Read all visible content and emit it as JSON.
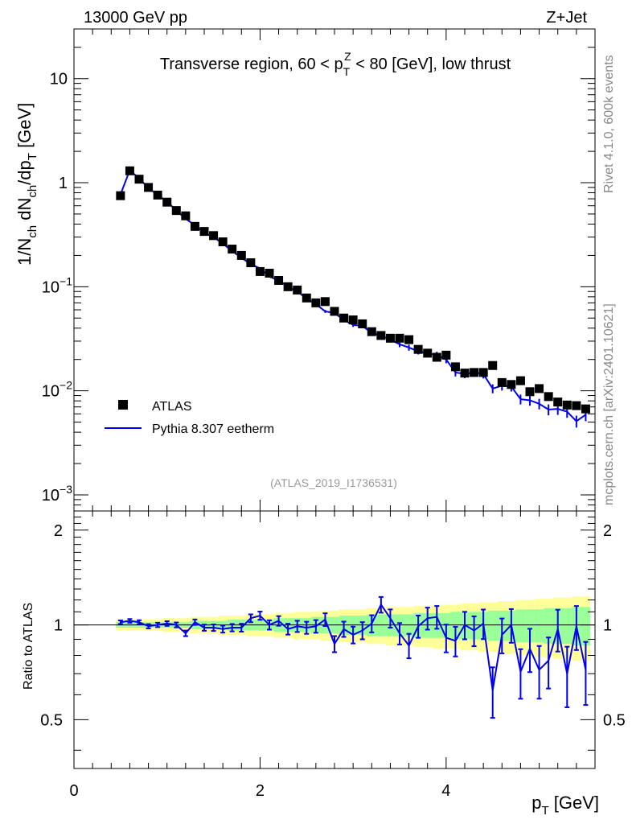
{
  "header": {
    "left": "13000 GeV pp",
    "right": "Z+Jet"
  },
  "side_labels": {
    "top": "Rivet 4.1.0,  600k events",
    "bottom": "mcplots.cern.ch [arXiv:2401.10621]"
  },
  "colors": {
    "data": "#000000",
    "mc": "#0000ee",
    "band_outer": "#ffff99",
    "band_inner": "#99ff99"
  },
  "chart_data": [
    {
      "type": "scatter",
      "title": "Transverse region, 60 < p_T^Z < 80 [GeV], low thrust",
      "ylabel": "1/N_ch dN_ch/dp_T [GeV]",
      "yscale": "log",
      "xlim": [
        0,
        5.6
      ],
      "ylim": [
        0.0007,
        30
      ],
      "yticks": [
        "10^-3",
        "10^-2",
        "10^-1",
        "1",
        "10"
      ],
      "watermark": "(ATLAS_2019_I1736531)",
      "legend": {
        "placement": "lower-left",
        "entries": [
          "ATLAS",
          "Pythia 8.307 eetherm"
        ]
      },
      "x": [
        0.5,
        0.6,
        0.7,
        0.8,
        0.9,
        1.0,
        1.1,
        1.2,
        1.3,
        1.4,
        1.5,
        1.6,
        1.7,
        1.8,
        1.9,
        2.0,
        2.1,
        2.2,
        2.3,
        2.4,
        2.5,
        2.6,
        2.7,
        2.8,
        2.9,
        3.0,
        3.1,
        3.2,
        3.3,
        3.4,
        3.5,
        3.6,
        3.7,
        3.8,
        3.9,
        4.0,
        4.1,
        4.2,
        4.3,
        4.4,
        4.5,
        4.6,
        4.7,
        4.8,
        4.9,
        5.0,
        5.1,
        5.2,
        5.3,
        5.4,
        5.5
      ],
      "series": [
        {
          "name": "ATLAS",
          "values": [
            0.75,
            1.3,
            1.08,
            0.9,
            0.76,
            0.65,
            0.54,
            0.48,
            0.38,
            0.34,
            0.31,
            0.27,
            0.23,
            0.2,
            0.17,
            0.14,
            0.135,
            0.115,
            0.1,
            0.093,
            0.078,
            0.07,
            0.072,
            0.058,
            0.05,
            0.048,
            0.044,
            0.037,
            0.034,
            0.032,
            0.032,
            0.031,
            0.025,
            0.023,
            0.021,
            0.022,
            0.017,
            0.0148,
            0.015,
            0.015,
            0.0175,
            0.012,
            0.0115,
            0.0125,
            0.0098,
            0.0105,
            0.0088,
            0.0078,
            0.0073,
            0.0072,
            0.0067
          ]
        },
        {
          "name": "Pythia 8.307 eetherm",
          "values": [
            0.77,
            1.32,
            1.1,
            0.89,
            0.76,
            0.66,
            0.54,
            0.45,
            0.39,
            0.33,
            0.3,
            0.26,
            0.22,
            0.19,
            0.165,
            0.15,
            0.125,
            0.115,
            0.1,
            0.09,
            0.077,
            0.068,
            0.058,
            0.056,
            0.048,
            0.043,
            0.042,
            0.036,
            0.034,
            0.031,
            0.028,
            0.026,
            0.024,
            0.023,
            0.022,
            0.02,
            0.015,
            0.0145,
            0.015,
            0.0145,
            0.0105,
            0.0112,
            0.011,
            0.0083,
            0.0081,
            0.0075,
            0.0066,
            0.0067,
            0.0063,
            0.0051,
            0.0059
          ]
        }
      ]
    },
    {
      "type": "line",
      "xlabel": "p_T [GeV]",
      "ylabel": "Ratio to ATLAS",
      "xlim": [
        0,
        5.6
      ],
      "ylim": [
        0.35,
        2.3
      ],
      "xticks": [
        0,
        2,
        4
      ],
      "yticks": [
        0.5,
        1,
        2
      ],
      "reference": 1,
      "x": [
        0.5,
        0.6,
        0.7,
        0.8,
        0.9,
        1.0,
        1.1,
        1.2,
        1.3,
        1.4,
        1.5,
        1.6,
        1.7,
        1.8,
        1.9,
        2.0,
        2.1,
        2.2,
        2.3,
        2.4,
        2.5,
        2.6,
        2.7,
        2.8,
        2.9,
        3.0,
        3.1,
        3.2,
        3.3,
        3.4,
        3.5,
        3.6,
        3.7,
        3.8,
        3.9,
        4.0,
        4.1,
        4.2,
        4.3,
        4.4,
        4.5,
        4.6,
        4.7,
        4.8,
        4.9,
        5.0,
        5.1,
        5.2,
        5.3,
        5.4,
        5.5
      ],
      "series": [
        {
          "name": "Pythia 8.307 eetherm / ATLAS",
          "values": [
            1.02,
            1.03,
            1.02,
            0.99,
            1.0,
            1.01,
            1.0,
            0.94,
            1.02,
            0.98,
            0.98,
            0.97,
            0.98,
            0.98,
            1.05,
            1.07,
            1.0,
            1.03,
            0.97,
            0.99,
            0.98,
            0.99,
            1.04,
            0.87,
            0.97,
            0.93,
            0.96,
            1.01,
            1.16,
            1.05,
            0.94,
            0.86,
            0.99,
            1.05,
            1.06,
            0.91,
            0.89,
            1.0,
            0.96,
            1.01,
            0.62,
            0.93,
            1.0,
            0.71,
            0.84,
            0.72,
            0.77,
            0.97,
            0.7,
            0.99,
            0.72
          ]
        },
        {
          "name": "ATLAS uncertainty (inner)",
          "values": [
            0.02,
            0.02,
            0.02,
            0.02,
            0.02,
            0.02,
            0.02,
            0.02,
            0.03,
            0.03,
            0.03,
            0.03,
            0.04,
            0.04,
            0.04,
            0.04,
            0.04,
            0.05,
            0.05,
            0.05,
            0.05,
            0.06,
            0.06,
            0.06,
            0.07,
            0.07,
            0.07,
            0.08,
            0.08,
            0.08,
            0.08,
            0.08,
            0.09,
            0.09,
            0.09,
            0.09,
            0.1,
            0.1,
            0.1,
            0.1,
            0.11,
            0.11,
            0.11,
            0.12,
            0.12,
            0.12,
            0.13,
            0.13,
            0.13,
            0.14,
            0.14
          ]
        },
        {
          "name": "ATLAS uncertainty (outer)",
          "values": [
            0.04,
            0.04,
            0.04,
            0.04,
            0.04,
            0.05,
            0.05,
            0.05,
            0.06,
            0.06,
            0.06,
            0.07,
            0.07,
            0.07,
            0.08,
            0.08,
            0.08,
            0.09,
            0.09,
            0.1,
            0.1,
            0.1,
            0.11,
            0.11,
            0.12,
            0.12,
            0.12,
            0.13,
            0.13,
            0.14,
            0.14,
            0.14,
            0.15,
            0.15,
            0.16,
            0.16,
            0.16,
            0.17,
            0.17,
            0.18,
            0.18,
            0.19,
            0.19,
            0.2,
            0.2,
            0.21,
            0.21,
            0.22,
            0.22,
            0.23,
            0.23
          ]
        }
      ]
    }
  ]
}
